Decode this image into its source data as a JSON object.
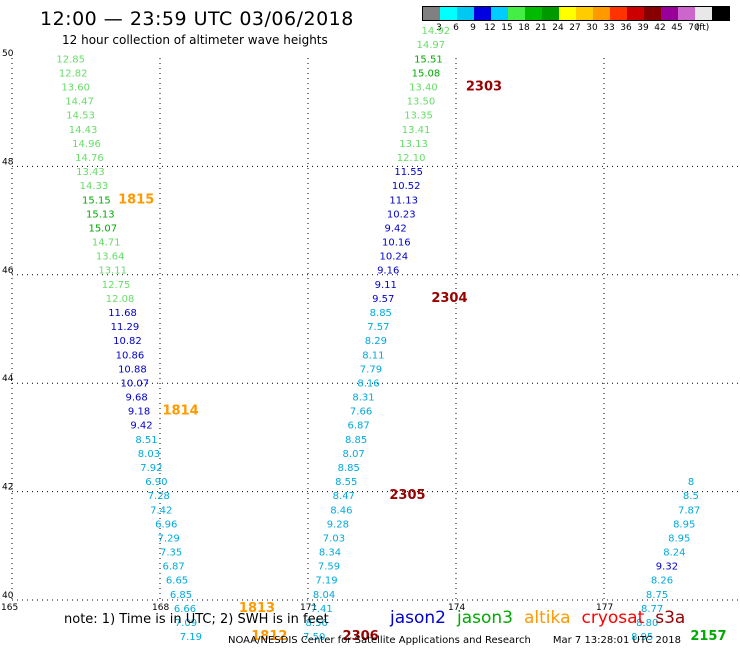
{
  "header": {
    "title": "12:00 — 23:59 UTC 03/06/2018",
    "subtitle": "12 hour collection of altimeter wave heights"
  },
  "legend": {
    "colors": [
      "#808080",
      "#00ffff",
      "#00c8f0",
      "#0000e0",
      "#00ccff",
      "#44ee44",
      "#00bb00",
      "#009900",
      "#ffff00",
      "#ffcc00",
      "#ff9900",
      "#ff3300",
      "#cc0000",
      "#880000",
      "#990099",
      "#cc66cc",
      "#e8e8e8",
      "#000000"
    ],
    "labels": [
      "3",
      "6",
      "9",
      "12",
      "15",
      "18",
      "21",
      "24",
      "27",
      "30",
      "33",
      "36",
      "39",
      "42",
      "45",
      "70",
      "(ft)"
    ]
  },
  "colors": {
    "jason2": "#0000cc",
    "jason3": "#00aa00",
    "altika": "#ff9900",
    "cryosat": "#ff0000",
    "s3a": "#990000",
    "swh_9_12": "#00aadd",
    "swh_12_15": "#66dd66",
    "grid": "#000000"
  },
  "chart_data": {
    "type": "scatter",
    "description_units": "longitude (deg E) vs latitude (deg N), value = significant wave height in feet",
    "xlim": [
      165,
      180
    ],
    "ylim": [
      40,
      50
    ],
    "xticks": [
      165,
      168,
      171,
      174,
      177
    ],
    "yticks": [
      40,
      42,
      44,
      46,
      48,
      50
    ],
    "tracks": [
      {
        "color": "#66dd66",
        "points": [
          [
            165.9,
            49.92,
            "12.85"
          ],
          [
            165.95,
            49.66,
            "12.82"
          ],
          [
            166.0,
            49.4,
            "13.60"
          ],
          [
            166.08,
            49.14,
            "14.47"
          ],
          [
            166.1,
            48.88,
            "14.53"
          ],
          [
            166.15,
            48.62,
            "14.43"
          ],
          [
            166.22,
            48.36,
            "14.96"
          ],
          [
            166.28,
            48.1,
            "14.76"
          ],
          [
            166.3,
            47.84,
            "13.43"
          ],
          [
            166.37,
            47.58,
            "14.33"
          ]
        ]
      },
      {
        "color": "#00aa00",
        "points": [
          [
            166.42,
            47.32,
            "15.15"
          ],
          [
            166.5,
            47.06,
            "15.13"
          ],
          [
            166.55,
            46.8,
            "15.07"
          ]
        ]
      },
      {
        "color": "#66dd66",
        "points": [
          [
            166.62,
            46.54,
            "14.71"
          ],
          [
            166.7,
            46.28,
            "13.64"
          ],
          [
            166.75,
            46.02,
            "13.11"
          ],
          [
            166.82,
            45.76,
            "12.75"
          ],
          [
            166.9,
            45.5,
            "12.08"
          ]
        ]
      },
      {
        "color": "#0000cc",
        "points": [
          [
            166.95,
            45.24,
            "11.68"
          ],
          [
            167.0,
            44.98,
            "11.29"
          ],
          [
            167.05,
            44.72,
            "10.82"
          ],
          [
            167.1,
            44.46,
            "10.86"
          ],
          [
            167.15,
            44.2,
            "10.88"
          ],
          [
            167.2,
            43.94,
            "10.07"
          ],
          [
            167.3,
            43.68,
            "9.68"
          ],
          [
            167.35,
            43.42,
            "9.18"
          ],
          [
            167.4,
            43.16,
            "9.42"
          ]
        ]
      },
      {
        "color": "#00aadd",
        "points": [
          [
            167.5,
            42.9,
            "8.51"
          ],
          [
            167.55,
            42.64,
            "8.03"
          ],
          [
            167.6,
            42.38,
            "7.92"
          ],
          [
            167.7,
            42.12,
            "6.90"
          ],
          [
            167.75,
            41.86,
            "7.28"
          ],
          [
            167.8,
            41.6,
            "7.42"
          ],
          [
            167.9,
            41.34,
            "6.96"
          ],
          [
            167.95,
            41.08,
            "7.29"
          ],
          [
            168.0,
            40.82,
            "7.35"
          ],
          [
            168.05,
            40.56,
            "6.87"
          ],
          [
            168.12,
            40.3,
            "6.65"
          ],
          [
            168.2,
            40.04,
            "6.85"
          ],
          [
            168.28,
            39.78,
            "6.66"
          ],
          [
            168.3,
            39.52,
            "7.09"
          ],
          [
            168.4,
            39.26,
            "7.19"
          ]
        ]
      },
      {
        "color": "#00aadd",
        "points": [
          [
            170.9,
            39.26,
            "7.50"
          ],
          [
            170.95,
            39.52,
            "8.56"
          ],
          [
            171.05,
            39.78,
            "7.41"
          ],
          [
            171.1,
            40.04,
            "8.04"
          ],
          [
            171.15,
            40.3,
            "7.19"
          ],
          [
            171.2,
            40.56,
            "7.59"
          ],
          [
            171.22,
            40.82,
            "8.34"
          ],
          [
            171.3,
            41.08,
            "7.03"
          ],
          [
            171.38,
            41.34,
            "9.28"
          ],
          [
            171.45,
            41.6,
            "8.46"
          ],
          [
            171.5,
            41.86,
            "8.47"
          ],
          [
            171.55,
            42.12,
            "8.55"
          ],
          [
            171.6,
            42.38,
            "8.85"
          ],
          [
            171.7,
            42.64,
            "8.07"
          ],
          [
            171.75,
            42.9,
            "8.85"
          ],
          [
            171.8,
            43.16,
            "6.87"
          ],
          [
            171.85,
            43.42,
            "7.66"
          ],
          [
            171.9,
            43.68,
            "8.31"
          ],
          [
            172.0,
            43.94,
            "8.16"
          ],
          [
            172.05,
            44.2,
            "7.79"
          ],
          [
            172.1,
            44.46,
            "8.11"
          ],
          [
            172.15,
            44.72,
            "8.29"
          ],
          [
            172.2,
            44.98,
            "7.57"
          ],
          [
            172.25,
            45.24,
            "8.85"
          ]
        ]
      },
      {
        "color": "#0000cc",
        "points": [
          [
            172.3,
            45.5,
            "9.57"
          ],
          [
            172.35,
            45.76,
            "9.11"
          ],
          [
            172.4,
            46.02,
            "9.16"
          ],
          [
            172.45,
            46.28,
            "10.24"
          ],
          [
            172.5,
            46.54,
            "10.16"
          ],
          [
            172.55,
            46.8,
            "9.42"
          ],
          [
            172.6,
            47.06,
            "10.23"
          ],
          [
            172.65,
            47.32,
            "11.13"
          ],
          [
            172.7,
            47.58,
            "10.52"
          ],
          [
            172.75,
            47.84,
            "11.55"
          ]
        ]
      },
      {
        "color": "#66dd66",
        "points": [
          [
            172.8,
            48.1,
            "12.10"
          ],
          [
            172.85,
            48.36,
            "13.13"
          ],
          [
            172.9,
            48.62,
            "13.41"
          ],
          [
            172.95,
            48.88,
            "13.35"
          ],
          [
            173.0,
            49.14,
            "13.50"
          ],
          [
            173.05,
            49.4,
            "13.40"
          ]
        ]
      },
      {
        "color": "#00aa00",
        "points": [
          [
            173.1,
            49.66,
            "15.08"
          ],
          [
            173.15,
            49.92,
            "15.51"
          ]
        ]
      },
      {
        "color": "#66dd66",
        "points": [
          [
            173.2,
            50.18,
            "14.97"
          ],
          [
            173.3,
            50.44,
            "14.92"
          ]
        ]
      },
      {
        "color": "#00aadd",
        "points": [
          [
            177.55,
            39.26,
            "8.95"
          ],
          [
            177.65,
            39.52,
            "8.80"
          ],
          [
            177.75,
            39.78,
            "8.77"
          ],
          [
            177.85,
            40.04,
            "8.75"
          ],
          [
            177.95,
            40.3,
            "8.26"
          ]
        ]
      },
      {
        "color": "#0000cc",
        "points": [
          [
            178.05,
            40.56,
            "9.32"
          ]
        ]
      },
      {
        "color": "#00aadd",
        "points": [
          [
            178.2,
            40.82,
            "8.24"
          ],
          [
            178.3,
            41.08,
            "8.95"
          ],
          [
            178.4,
            41.34,
            "8.95"
          ],
          [
            178.5,
            41.6,
            "7.87"
          ],
          [
            178.6,
            41.86,
            "8.5"
          ],
          [
            178.7,
            42.12,
            "8"
          ]
        ]
      }
    ],
    "pass_labels": [
      {
        "text": "1815",
        "x": 167.15,
        "y": 47.32,
        "color": "#ff9900"
      },
      {
        "text": "1814",
        "x": 168.05,
        "y": 43.42,
        "color": "#ff9900"
      },
      {
        "text": "1813",
        "x": 169.6,
        "y": 39.78,
        "color": "#ff9900"
      },
      {
        "text": "1812",
        "x": 169.85,
        "y": 39.26,
        "color": "#ff9900"
      },
      {
        "text": "2306",
        "x": 171.7,
        "y": 39.26,
        "color": "#990000"
      },
      {
        "text": "2305",
        "x": 172.65,
        "y": 41.86,
        "color": "#990000"
      },
      {
        "text": "2304",
        "x": 173.5,
        "y": 45.5,
        "color": "#990000"
      },
      {
        "text": "2303",
        "x": 174.2,
        "y": 49.4,
        "color": "#990000"
      },
      {
        "text": "2157",
        "x": 178.75,
        "y": 39.26,
        "color": "#00aa00"
      }
    ]
  },
  "footer": {
    "note": "note: 1) Time is in UTC; 2) SWH is in feet",
    "satellites": [
      {
        "name": "jason2",
        "color": "#0000cc"
      },
      {
        "name": "jason3",
        "color": "#00aa00"
      },
      {
        "name": "altika",
        "color": "#ff9900"
      },
      {
        "name": "cryosat",
        "color": "#ff0000"
      },
      {
        "name": "s3a",
        "color": "#990000"
      }
    ],
    "credit": "NOAA/NESDIS Center for Satellite Applications and Research",
    "timestamp": "Mar  7 13:28:01 UTC 2018"
  }
}
